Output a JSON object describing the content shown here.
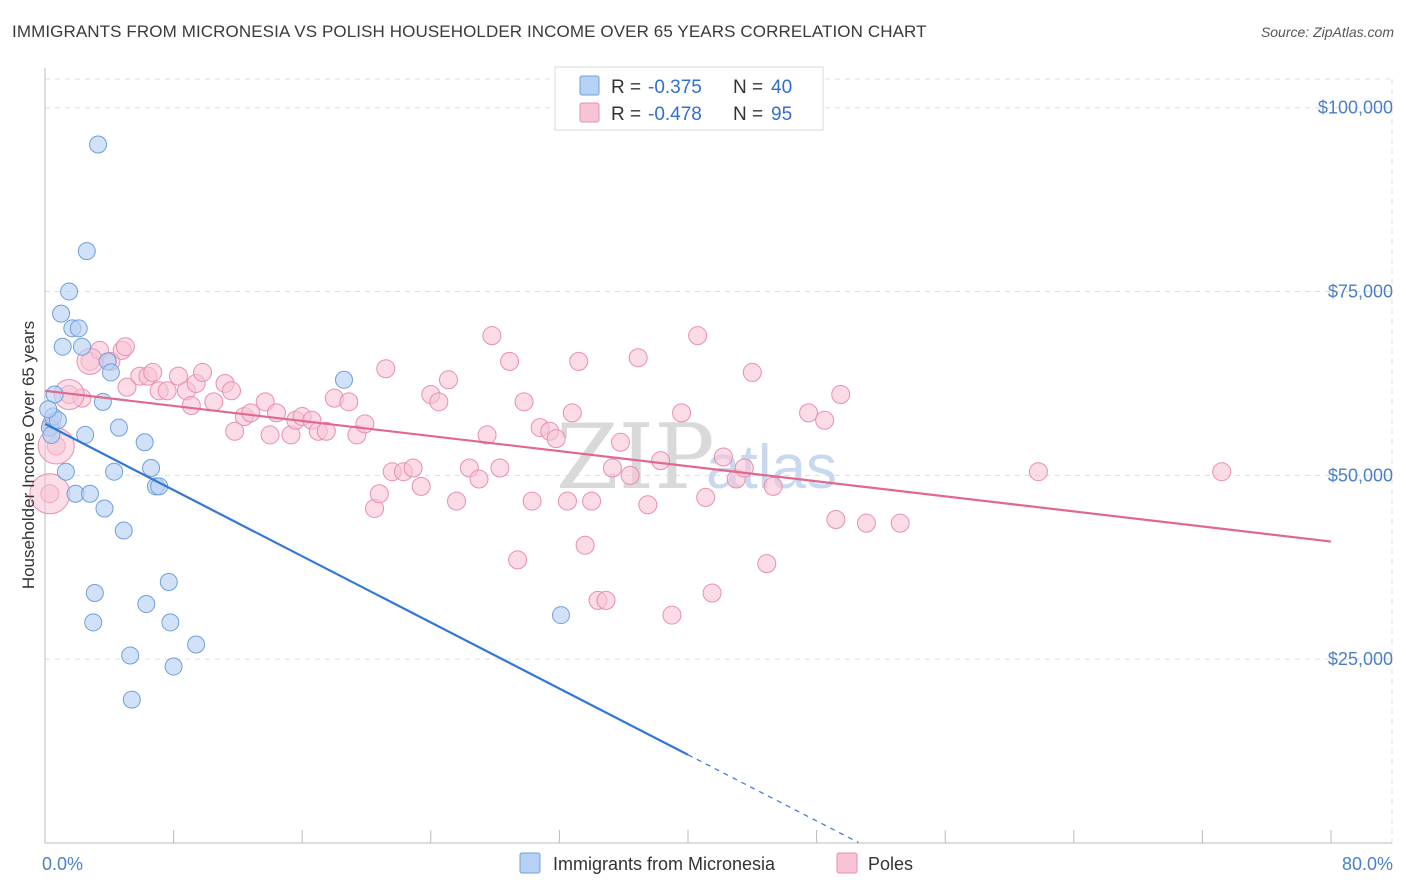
{
  "title": "IMMIGRANTS FROM MICRONESIA VS POLISH HOUSEHOLDER INCOME OVER 65 YEARS CORRELATION CHART",
  "source": "Source: ZipAtlas.com",
  "watermark": {
    "zip": "ZIP",
    "atlas": "atlas"
  },
  "legend": {
    "rows": [
      {
        "r_label": "R = ",
        "r_value": "-0.375",
        "n_label": "N = ",
        "n_value": "40"
      },
      {
        "r_label": "R = ",
        "r_value": "-0.478",
        "n_label": "N = ",
        "n_value": "95"
      }
    ]
  },
  "colors": {
    "blue_fill": "#b7d1f5",
    "blue_stroke": "#6f9fdc",
    "blue_line": "#3377d4",
    "pink_fill": "#f7c3d5",
    "pink_stroke": "#e98fae",
    "pink_line": "#e0688f",
    "grid": "#dddddd",
    "axis_text": "#4a7fc9"
  },
  "chart_data": {
    "type": "scatter",
    "title": "IMMIGRANTS FROM MICRONESIA VS POLISH HOUSEHOLDER INCOME OVER 65 YEARS CORRELATION CHART",
    "xlabel": "",
    "ylabel": "Householder Income Over 65 years",
    "xlim": [
      0,
      80
    ],
    "ylim": [
      0,
      105000
    ],
    "x_tick_labels": [
      "0.0%",
      "80.0%"
    ],
    "y_ticks": [
      25000,
      50000,
      75000,
      100000
    ],
    "y_tick_labels": [
      "$25,000",
      "$50,000",
      "$75,000",
      "$100,000"
    ],
    "grid": "horizontal dashed",
    "legend_position": "top-center",
    "series": [
      {
        "name": "Immigrants from Micronesia",
        "color": "#6f9fdc",
        "r": -0.375,
        "n": 40,
        "trend": {
          "x0": 0,
          "y0": 57000,
          "x1": 40,
          "y1": 12000,
          "dashed_to_x": 50.6
        },
        "points": [
          [
            0.3,
            56500
          ],
          [
            0.4,
            55500
          ],
          [
            0.5,
            58000
          ],
          [
            0.6,
            61000
          ],
          [
            0.8,
            57500
          ],
          [
            1.0,
            72000
          ],
          [
            1.1,
            67500
          ],
          [
            1.3,
            50500
          ],
          [
            1.5,
            75000
          ],
          [
            1.7,
            70000
          ],
          [
            1.9,
            47500
          ],
          [
            2.1,
            70000
          ],
          [
            2.3,
            67500
          ],
          [
            2.5,
            55500
          ],
          [
            2.6,
            80500
          ],
          [
            2.8,
            47500
          ],
          [
            3.0,
            30000
          ],
          [
            3.1,
            34000
          ],
          [
            3.3,
            95000
          ],
          [
            3.6,
            60000
          ],
          [
            3.7,
            45500
          ],
          [
            3.9,
            65500
          ],
          [
            4.1,
            64000
          ],
          [
            4.3,
            50500
          ],
          [
            4.6,
            56500
          ],
          [
            4.9,
            42500
          ],
          [
            5.3,
            25500
          ],
          [
            5.4,
            19500
          ],
          [
            6.2,
            54500
          ],
          [
            6.3,
            32500
          ],
          [
            6.6,
            51000
          ],
          [
            6.9,
            48500
          ],
          [
            7.1,
            48500
          ],
          [
            7.7,
            35500
          ],
          [
            7.8,
            30000
          ],
          [
            8.0,
            24000
          ],
          [
            9.4,
            27000
          ],
          [
            18.6,
            63000
          ],
          [
            32.1,
            31000
          ],
          [
            0.2,
            59000
          ]
        ]
      },
      {
        "name": "Poles",
        "color": "#e98fae",
        "r": -0.478,
        "n": 95,
        "trend": {
          "x0": 0,
          "y0": 61500,
          "x1": 80,
          "y1": 41000
        },
        "points": [
          [
            0.3,
            47500
          ],
          [
            0.4,
            57000
          ],
          [
            0.7,
            54000
          ],
          [
            1.5,
            61000
          ],
          [
            2.3,
            60500
          ],
          [
            2.8,
            65500
          ],
          [
            3.4,
            67000
          ],
          [
            4.1,
            65500
          ],
          [
            4.8,
            67000
          ],
          [
            5.0,
            67500
          ],
          [
            5.1,
            62000
          ],
          [
            5.9,
            63500
          ],
          [
            6.4,
            63500
          ],
          [
            6.7,
            64000
          ],
          [
            7.1,
            61500
          ],
          [
            7.6,
            61500
          ],
          [
            8.3,
            63500
          ],
          [
            8.8,
            61500
          ],
          [
            9.4,
            62500
          ],
          [
            9.8,
            64000
          ],
          [
            10.5,
            60000
          ],
          [
            11.2,
            62500
          ],
          [
            11.6,
            61500
          ],
          [
            12.4,
            58000
          ],
          [
            12.8,
            58500
          ],
          [
            13.7,
            60000
          ],
          [
            14.0,
            55500
          ],
          [
            14.4,
            58500
          ],
          [
            15.3,
            55500
          ],
          [
            15.6,
            57500
          ],
          [
            16.0,
            58000
          ],
          [
            16.6,
            57500
          ],
          [
            17.0,
            56000
          ],
          [
            17.5,
            56000
          ],
          [
            18.0,
            60500
          ],
          [
            18.9,
            60000
          ],
          [
            19.4,
            55500
          ],
          [
            19.9,
            57000
          ],
          [
            20.5,
            45500
          ],
          [
            20.8,
            47500
          ],
          [
            21.2,
            64500
          ],
          [
            21.6,
            50500
          ],
          [
            22.3,
            50500
          ],
          [
            22.9,
            51000
          ],
          [
            23.4,
            48500
          ],
          [
            24.0,
            61000
          ],
          [
            24.5,
            60000
          ],
          [
            25.1,
            63000
          ],
          [
            25.6,
            46500
          ],
          [
            26.4,
            51000
          ],
          [
            27.0,
            49500
          ],
          [
            27.5,
            55500
          ],
          [
            27.8,
            69000
          ],
          [
            28.3,
            51000
          ],
          [
            28.9,
            65500
          ],
          [
            29.4,
            38500
          ],
          [
            29.8,
            60000
          ],
          [
            30.3,
            46500
          ],
          [
            30.8,
            56500
          ],
          [
            31.4,
            56000
          ],
          [
            31.8,
            55000
          ],
          [
            32.5,
            46500
          ],
          [
            32.8,
            58500
          ],
          [
            33.2,
            65500
          ],
          [
            33.6,
            40500
          ],
          [
            34.0,
            46500
          ],
          [
            34.4,
            33000
          ],
          [
            34.9,
            33000
          ],
          [
            35.3,
            51000
          ],
          [
            35.8,
            54500
          ],
          [
            36.4,
            50000
          ],
          [
            36.9,
            66000
          ],
          [
            37.5,
            46000
          ],
          [
            38.3,
            52000
          ],
          [
            39.0,
            31000
          ],
          [
            39.6,
            58500
          ],
          [
            40.6,
            69000
          ],
          [
            41.1,
            47000
          ],
          [
            41.5,
            34000
          ],
          [
            42.2,
            52500
          ],
          [
            43.0,
            49500
          ],
          [
            43.5,
            51000
          ],
          [
            44.0,
            64000
          ],
          [
            44.9,
            38000
          ],
          [
            45.3,
            48500
          ],
          [
            47.5,
            58500
          ],
          [
            48.5,
            57500
          ],
          [
            49.2,
            44000
          ],
          [
            49.5,
            61000
          ],
          [
            51.1,
            43500
          ],
          [
            53.2,
            43500
          ],
          [
            61.8,
            50500
          ],
          [
            73.2,
            50500
          ],
          [
            11.8,
            56000
          ],
          [
            9.1,
            59500
          ]
        ]
      }
    ]
  },
  "bottom_legend": [
    "Immigrants from Micronesia",
    "Poles"
  ]
}
